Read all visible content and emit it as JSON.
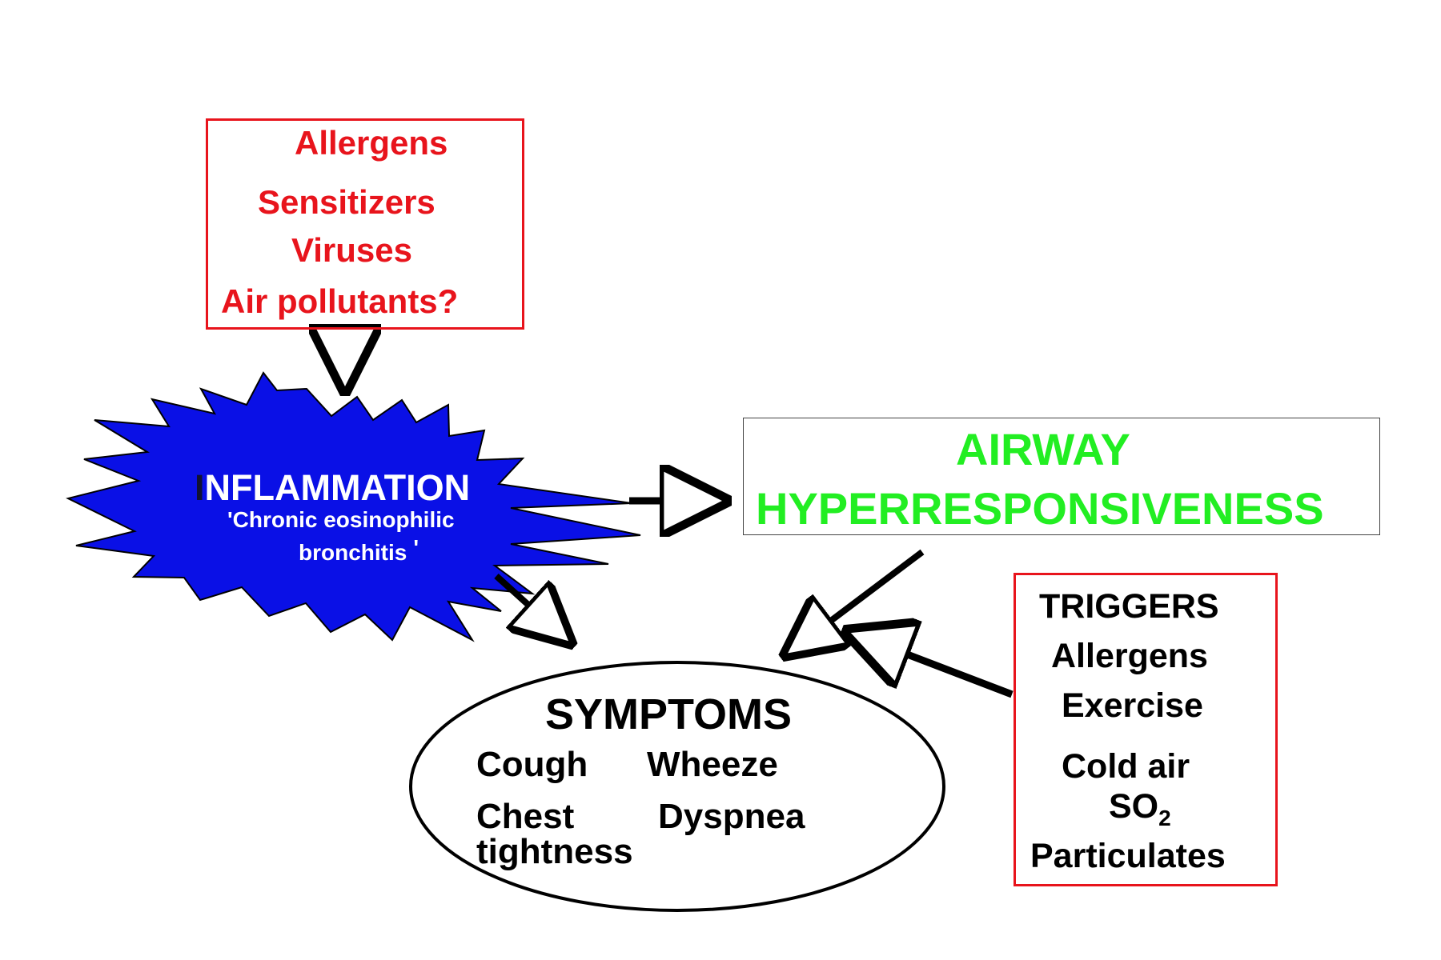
{
  "causes": {
    "items": [
      "Allergens",
      "Sensitizers",
      "Viruses",
      "Air pollutants?"
    ]
  },
  "inflammation": {
    "first_letter": "I",
    "rest": "NFLAMMATION",
    "subtitle_line1": "'Chronic eosinophilic",
    "subtitle_line2": "bronchitis",
    "subtitle_end": "'"
  },
  "ahr": {
    "line1": "AIRWAY",
    "line2": "HYPERRESPONSIVENESS"
  },
  "symptoms": {
    "title": "SYMPTOMS",
    "items": [
      "Cough",
      "Wheeze",
      "Chest",
      "Dyspnea",
      "tightness"
    ]
  },
  "triggers": {
    "title": "TRIGGERS",
    "items": [
      "Allergens",
      "Exercise",
      "Cold air"
    ],
    "so2_main": "SO",
    "so2_sub": "2",
    "last": "Particulates"
  },
  "colors": {
    "causes": "#e8141c",
    "inflammation_fill": "#0a10e6",
    "ahr_text": "#22ee22",
    "triggers_border": "#e8141c"
  }
}
